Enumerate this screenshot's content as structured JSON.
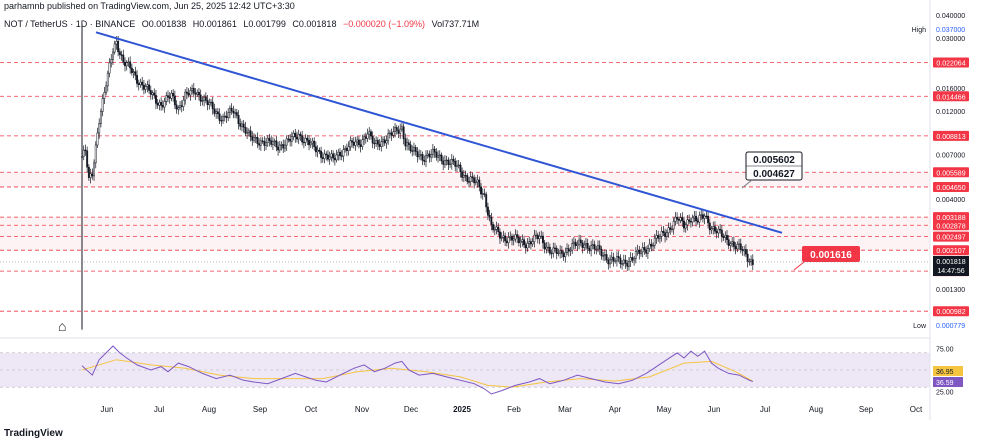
{
  "header": {
    "published_by": "parhamnb published on TradingView.com, Jun 25, 2025 12:42 UTC+3:30"
  },
  "symbol_line": {
    "symbol": "NOT / TetherUS · 1D · BINANCE",
    "open": "O0.001838",
    "high": "H0.001861",
    "low": "L0.001799",
    "close": "C0.001818",
    "change": "−0.000020 (−1.09%)",
    "volume": "Vol737.71M"
  },
  "footer": {
    "brand": "TradingView"
  },
  "colors": {
    "up": "#131722",
    "trendline": "#2f55d4",
    "level": "#f23645",
    "rsi_line": "#7e57c2",
    "rsi_ma": "#f5c542",
    "rsi_band": "#ede7f6"
  },
  "chart_data": [
    {
      "type": "candlestick",
      "scale": "log",
      "ylim": [
        0.00072,
        0.0405
      ],
      "x_labels": [
        "Jun",
        "Jul",
        "Aug",
        "Sep",
        "Oct",
        "Nov",
        "Dec",
        "2025",
        "Feb",
        "Mar",
        "Apr",
        "May",
        "Jun",
        "Jul",
        "Aug",
        "Sep",
        "Oct"
      ],
      "y_ticks": [
        "0.040000",
        "0.030000",
        "0.016000",
        "0.012000",
        "0.007000",
        "0.004000",
        "0.001300"
      ],
      "high_marker": {
        "label": "High",
        "value": "0.037000"
      },
      "low_marker": {
        "label": "Low",
        "value": "0.000779"
      },
      "levels": [
        {
          "value": 0.022064,
          "label": "0.022064"
        },
        {
          "value": 0.014466,
          "label": "0.014466"
        },
        {
          "value": 0.008813,
          "label": "0.008813"
        },
        {
          "value": 0.005589,
          "label": "0.005589"
        },
        {
          "value": 0.00465,
          "label": "0.004650"
        },
        {
          "value": 0.003188,
          "label": "0.003188"
        },
        {
          "value": 0.002878,
          "label": "0.002878"
        },
        {
          "value": 0.002497,
          "label": "0.002497"
        },
        {
          "value": 0.002107,
          "label": "0.002107"
        },
        {
          "value": 0.001621,
          "label": "0.001621"
        },
        {
          "value": 0.000982,
          "label": "0.000982"
        }
      ],
      "zones": [
        {
          "from": 0.00465,
          "to": 0.005589
        },
        {
          "from": 0.002107,
          "to": 0.003188
        }
      ],
      "current_price": {
        "value": "0.001818",
        "countdown": "14:47:56"
      },
      "trendline": {
        "from": {
          "x": "2024-05-28",
          "y": 0.0322
        },
        "to": {
          "x": "2025-06-30",
          "y": 0.00262
        }
      },
      "annotations": [
        {
          "text": "0.005602",
          "style": "box"
        },
        {
          "text": "0.004627",
          "style": "box"
        },
        {
          "text": "0.001616",
          "style": "red-box"
        }
      ],
      "price_path": [
        [
          0,
          0.0068
        ],
        [
          2,
          0.0072
        ],
        [
          4,
          0.005
        ],
        [
          6,
          0.0055
        ],
        [
          8,
          0.0078
        ],
        [
          10,
          0.011
        ],
        [
          12,
          0.0135
        ],
        [
          15,
          0.0185
        ],
        [
          18,
          0.026
        ],
        [
          20,
          0.029
        ],
        [
          24,
          0.022
        ],
        [
          28,
          0.0205
        ],
        [
          34,
          0.017
        ],
        [
          40,
          0.015
        ],
        [
          46,
          0.013
        ],
        [
          52,
          0.0145
        ],
        [
          56,
          0.0125
        ],
        [
          60,
          0.0145
        ],
        [
          66,
          0.0155
        ],
        [
          72,
          0.0135
        ],
        [
          78,
          0.0118
        ],
        [
          82,
          0.011
        ],
        [
          88,
          0.012
        ],
        [
          92,
          0.0105
        ],
        [
          98,
          0.0085
        ],
        [
          106,
          0.0082
        ],
        [
          114,
          0.0078
        ],
        [
          120,
          0.0082
        ],
        [
          126,
          0.009
        ],
        [
          132,
          0.008
        ],
        [
          138,
          0.0072
        ],
        [
          146,
          0.0065
        ],
        [
          150,
          0.0072
        ],
        [
          156,
          0.0078
        ],
        [
          162,
          0.0082
        ],
        [
          166,
          0.0092
        ],
        [
          170,
          0.0078
        ],
        [
          176,
          0.0085
        ],
        [
          182,
          0.0092
        ],
        [
          186,
          0.0098
        ],
        [
          188,
          0.0082
        ],
        [
          192,
          0.0072
        ],
        [
          198,
          0.0068
        ],
        [
          204,
          0.007
        ],
        [
          210,
          0.0066
        ],
        [
          218,
          0.006
        ],
        [
          224,
          0.0052
        ],
        [
          230,
          0.0048
        ],
        [
          234,
          0.0042
        ],
        [
          238,
          0.0028
        ],
        [
          244,
          0.0025
        ],
        [
          252,
          0.0024
        ],
        [
          260,
          0.0023
        ],
        [
          266,
          0.0025
        ],
        [
          272,
          0.0021
        ],
        [
          278,
          0.002
        ],
        [
          284,
          0.0022
        ],
        [
          292,
          0.0023
        ],
        [
          300,
          0.0021
        ],
        [
          306,
          0.0019
        ],
        [
          314,
          0.0018
        ],
        [
          320,
          0.0019
        ],
        [
          326,
          0.0021
        ],
        [
          334,
          0.0024
        ],
        [
          340,
          0.0027
        ],
        [
          346,
          0.0031
        ],
        [
          350,
          0.0029
        ],
        [
          354,
          0.0032
        ],
        [
          358,
          0.003
        ],
        [
          362,
          0.0033
        ],
        [
          366,
          0.0028
        ],
        [
          370,
          0.0026
        ],
        [
          376,
          0.0024
        ],
        [
          380,
          0.0022
        ],
        [
          384,
          0.0021
        ],
        [
          388,
          0.0019
        ],
        [
          390,
          0.0018
        ]
      ]
    },
    {
      "type": "line",
      "name": "RSI",
      "ylim": [
        15,
        85
      ],
      "y_ticks": [
        "75.00",
        "25.00"
      ],
      "band": [
        30,
        70
      ],
      "rsi_value": "36.59",
      "ma_value": "36.95",
      "rsi_path": [
        [
          0,
          55
        ],
        [
          6,
          44
        ],
        [
          10,
          62
        ],
        [
          14,
          70
        ],
        [
          18,
          78
        ],
        [
          22,
          70
        ],
        [
          26,
          64
        ],
        [
          32,
          56
        ],
        [
          40,
          50
        ],
        [
          46,
          54
        ],
        [
          50,
          48
        ],
        [
          56,
          58
        ],
        [
          62,
          54
        ],
        [
          70,
          46
        ],
        [
          78,
          40
        ],
        [
          86,
          44
        ],
        [
          94,
          38
        ],
        [
          100,
          36
        ],
        [
          108,
          34
        ],
        [
          116,
          40
        ],
        [
          124,
          46
        ],
        [
          130,
          42
        ],
        [
          136,
          38
        ],
        [
          142,
          36
        ],
        [
          150,
          44
        ],
        [
          158,
          52
        ],
        [
          164,
          56
        ],
        [
          170,
          48
        ],
        [
          176,
          52
        ],
        [
          182,
          58
        ],
        [
          186,
          60
        ],
        [
          190,
          50
        ],
        [
          196,
          44
        ],
        [
          204,
          46
        ],
        [
          212,
          42
        ],
        [
          220,
          38
        ],
        [
          228,
          34
        ],
        [
          234,
          28
        ],
        [
          238,
          22
        ],
        [
          244,
          26
        ],
        [
          252,
          32
        ],
        [
          260,
          36
        ],
        [
          266,
          40
        ],
        [
          272,
          34
        ],
        [
          280,
          38
        ],
        [
          288,
          44
        ],
        [
          296,
          40
        ],
        [
          304,
          36
        ],
        [
          312,
          34
        ],
        [
          320,
          38
        ],
        [
          328,
          46
        ],
        [
          334,
          54
        ],
        [
          340,
          62
        ],
        [
          346,
          70
        ],
        [
          350,
          64
        ],
        [
          354,
          72
        ],
        [
          358,
          66
        ],
        [
          362,
          72
        ],
        [
          366,
          58
        ],
        [
          370,
          52
        ],
        [
          376,
          46
        ],
        [
          382,
          44
        ],
        [
          388,
          38
        ],
        [
          390,
          36.59
        ]
      ],
      "ma_path": [
        [
          0,
          50
        ],
        [
          20,
          62
        ],
        [
          40,
          56
        ],
        [
          60,
          52
        ],
        [
          80,
          44
        ],
        [
          100,
          40
        ],
        [
          120,
          40
        ],
        [
          140,
          40
        ],
        [
          160,
          48
        ],
        [
          180,
          52
        ],
        [
          200,
          48
        ],
        [
          220,
          42
        ],
        [
          236,
          32
        ],
        [
          250,
          30
        ],
        [
          270,
          36
        ],
        [
          290,
          40
        ],
        [
          310,
          37
        ],
        [
          330,
          42
        ],
        [
          350,
          58
        ],
        [
          366,
          60
        ],
        [
          380,
          48
        ],
        [
          390,
          36.95
        ]
      ]
    }
  ]
}
